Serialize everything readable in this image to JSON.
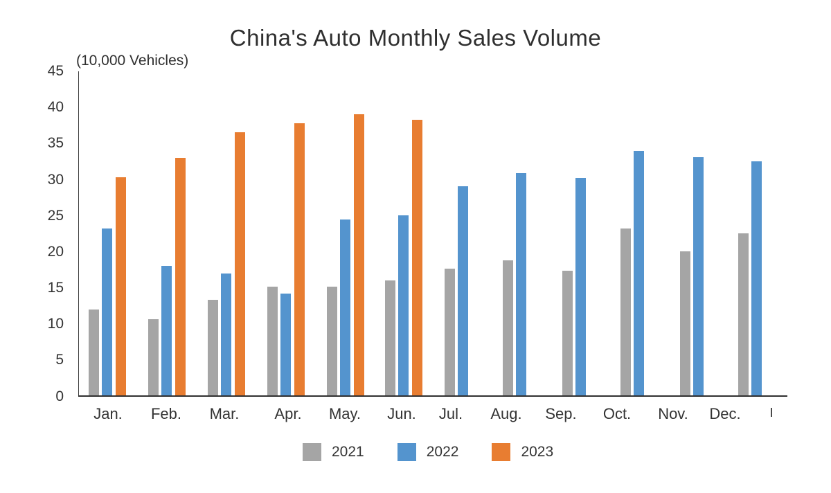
{
  "chart_data": {
    "type": "bar",
    "title": "China's Auto Monthly Sales Volume",
    "unit_label": "(10,000 Vehicles)",
    "categories": [
      "Jan.",
      "Feb.",
      "Mar.",
      "Apr.",
      "May.",
      "Jun.",
      "Jul.",
      "Aug.",
      "Sep.",
      "Oct.",
      "Nov.",
      "Dec."
    ],
    "series": [
      {
        "name": "2021",
        "color": "#a5a5a5",
        "values": [
          11.9,
          10.5,
          13.2,
          15.1,
          15.1,
          15.9,
          17.5,
          18.7,
          17.3,
          23.1,
          19.9,
          22.4
        ]
      },
      {
        "name": "2022",
        "color": "#5494ce",
        "values": [
          23.1,
          17.9,
          16.9,
          14.1,
          24.4,
          24.9,
          29.0,
          30.8,
          30.1,
          33.8,
          33.0,
          32.4
        ]
      },
      {
        "name": "2023",
        "color": "#e87d31",
        "values": [
          30.2,
          32.9,
          36.4,
          37.7,
          38.9,
          38.2,
          null,
          null,
          null,
          null,
          null,
          null
        ]
      }
    ],
    "ylim": [
      0,
      45
    ],
    "yticks": [
      0,
      5,
      10,
      15,
      20,
      25,
      30,
      35,
      40,
      45
    ],
    "grid": false,
    "legend_position": "bottom"
  }
}
